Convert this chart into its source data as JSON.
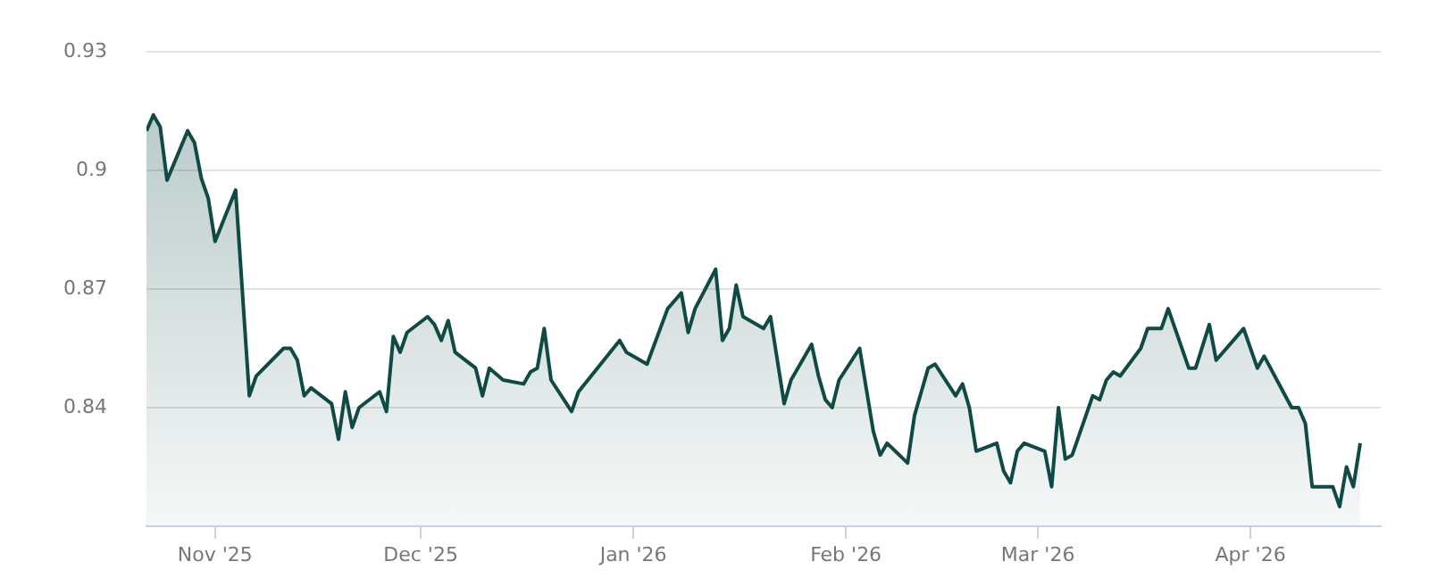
{
  "chart_data": {
    "type": "area",
    "x": [
      "2025-10-22",
      "2025-10-23",
      "2025-10-24",
      "2025-10-25",
      "2025-10-28",
      "2025-10-29",
      "2025-10-30",
      "2025-10-31",
      "2025-11-01",
      "2025-11-04",
      "2025-11-06",
      "2025-11-07",
      "2025-11-11",
      "2025-11-12",
      "2025-11-13",
      "2025-11-14",
      "2025-11-15",
      "2025-11-18",
      "2025-11-19",
      "2025-11-20",
      "2025-11-21",
      "2025-11-22",
      "2025-11-25",
      "2025-11-26",
      "2025-11-27",
      "2025-11-28",
      "2025-11-29",
      "2025-12-02",
      "2025-12-03",
      "2025-12-04",
      "2025-12-05",
      "2025-12-06",
      "2025-12-09",
      "2025-12-10",
      "2025-12-11",
      "2025-12-13",
      "2025-12-16",
      "2025-12-17",
      "2025-12-18",
      "2025-12-19",
      "2025-12-20",
      "2025-12-23",
      "2025-12-24",
      "2025-12-30",
      "2025-12-31",
      "2026-01-03",
      "2026-01-06",
      "2026-01-07",
      "2026-01-08",
      "2026-01-09",
      "2026-01-10",
      "2026-01-13",
      "2026-01-14",
      "2026-01-15",
      "2026-01-16",
      "2026-01-17",
      "2026-01-20",
      "2026-01-21",
      "2026-01-23",
      "2026-01-24",
      "2026-01-27",
      "2026-01-28",
      "2026-01-29",
      "2026-01-30",
      "2026-01-31",
      "2026-02-03",
      "2026-02-05",
      "2026-02-06",
      "2026-02-07",
      "2026-02-10",
      "2026-02-11",
      "2026-02-12",
      "2026-02-13",
      "2026-02-14",
      "2026-02-17",
      "2026-02-18",
      "2026-02-19",
      "2026-02-20",
      "2026-02-23",
      "2026-02-24",
      "2026-02-25",
      "2026-02-26",
      "2026-02-27",
      "2026-03-02",
      "2026-03-03",
      "2026-03-04",
      "2026-03-05",
      "2026-03-06",
      "2026-03-09",
      "2026-03-10",
      "2026-03-11",
      "2026-03-12",
      "2026-03-13",
      "2026-03-16",
      "2026-03-17",
      "2026-03-18",
      "2026-03-19",
      "2026-03-20",
      "2026-03-23",
      "2026-03-24",
      "2026-03-26",
      "2026-03-27",
      "2026-03-31",
      "2026-04-02",
      "2026-04-03",
      "2026-04-07",
      "2026-04-08",
      "2026-04-09",
      "2026-04-10",
      "2026-04-13",
      "2026-04-14",
      "2026-04-15",
      "2026-04-16",
      "2026-04-17"
    ],
    "series": [
      {
        "color": "#0f4a45",
        "values": [
          0.91,
          0.914,
          0.911,
          0.8975,
          0.91,
          0.907,
          0.898,
          0.893,
          0.882,
          0.895,
          0.843,
          0.848,
          0.855,
          0.855,
          0.852,
          0.843,
          0.845,
          0.841,
          0.832,
          0.844,
          0.835,
          0.84,
          0.844,
          0.839,
          0.858,
          0.854,
          0.859,
          0.863,
          0.861,
          0.857,
          0.862,
          0.854,
          0.85,
          0.843,
          0.85,
          0.847,
          0.846,
          0.849,
          0.85,
          0.86,
          0.847,
          0.839,
          0.844,
          0.857,
          0.854,
          0.851,
          0.865,
          0.867,
          0.869,
          0.859,
          0.865,
          0.875,
          0.857,
          0.86,
          0.871,
          0.863,
          0.86,
          0.863,
          0.841,
          0.847,
          0.856,
          0.848,
          0.842,
          0.84,
          0.847,
          0.855,
          0.834,
          0.828,
          0.831,
          0.826,
          0.838,
          0.844,
          0.85,
          0.851,
          0.843,
          0.846,
          0.84,
          0.829,
          0.831,
          0.824,
          0.821,
          0.829,
          0.831,
          0.829,
          0.82,
          0.84,
          0.827,
          0.828,
          0.843,
          0.842,
          0.847,
          0.849,
          0.848,
          0.855,
          0.86,
          0.86,
          0.86,
          0.865,
          0.85,
          0.85,
          0.861,
          0.852,
          0.86,
          0.85,
          0.853,
          0.84,
          0.84,
          0.836,
          0.82,
          0.82,
          0.815,
          0.825,
          0.82,
          0.831
        ]
      }
    ],
    "xlim": [
      "2025-10-22",
      "2026-04-20"
    ],
    "xticks": [
      {
        "value": "2025-11-01",
        "label": "Nov '25"
      },
      {
        "value": "2025-12-01",
        "label": "Dec '25"
      },
      {
        "value": "2026-01-01",
        "label": "Jan '26"
      },
      {
        "value": "2026-02-01",
        "label": "Feb '26"
      },
      {
        "value": "2026-03-01",
        "label": "Mar '26"
      },
      {
        "value": "2026-04-01",
        "label": "Apr '26"
      }
    ],
    "ylim": [
      0.81,
      0.93
    ],
    "yticks": [
      0.84,
      0.87,
      {
        "value": 0.9,
        "label": "0.9"
      },
      0.93
    ],
    "grid": "y",
    "legend": false,
    "marker": "none",
    "line_style": "solid"
  }
}
